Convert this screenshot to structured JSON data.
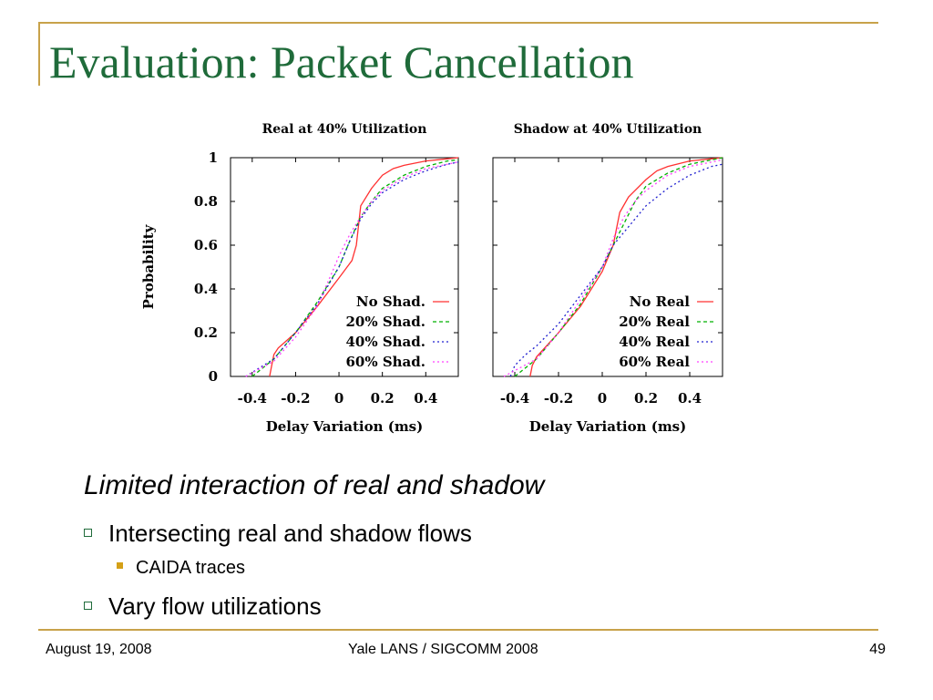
{
  "slide": {
    "title": "Evaluation: Packet Cancellation",
    "subtitle": "Limited interaction of real and shadow",
    "bullets": [
      "Intersecting real and shadow flows",
      "CAIDA traces",
      "Vary flow utilizations"
    ],
    "footer": {
      "left": "August 19, 2008",
      "center": "Yale LANS / SIGCOMM 2008",
      "right": "49"
    }
  },
  "chart_data": [
    {
      "type": "line",
      "title": "Real at 40% Utilization",
      "xlabel": "Delay Variation (ms)",
      "ylabel": "Probability",
      "xlim": [
        -0.5,
        0.55
      ],
      "ylim": [
        0,
        1
      ],
      "xticks": [
        "-0.4",
        "-0.2",
        "0",
        "0.2",
        "0.4"
      ],
      "xtick_values": [
        -0.4,
        -0.2,
        0,
        0.2,
        0.4
      ],
      "yticks": [
        "0",
        "0.2",
        "0.4",
        "0.6",
        "0.8",
        "1"
      ],
      "ytick_values": [
        0,
        0.2,
        0.4,
        0.6,
        0.8,
        1
      ],
      "legend_position": "bottom-right",
      "series": [
        {
          "name": "No Shad.",
          "color": "#ff3030",
          "dash": "solid",
          "x": [
            -0.32,
            -0.31,
            -0.3,
            -0.28,
            -0.2,
            -0.1,
            0,
            0.06,
            0.08,
            0.1,
            0.15,
            0.2,
            0.25,
            0.3,
            0.4,
            0.5,
            0.55
          ],
          "y": [
            0,
            0.05,
            0.1,
            0.13,
            0.2,
            0.32,
            0.45,
            0.53,
            0.6,
            0.78,
            0.86,
            0.92,
            0.95,
            0.965,
            0.985,
            0.995,
            1
          ]
        },
        {
          "name": "20% Shad.",
          "color": "#00b000",
          "dash": "4,3",
          "x": [
            -0.4,
            -0.3,
            -0.2,
            -0.1,
            0,
            0.05,
            0.1,
            0.15,
            0.2,
            0.3,
            0.4,
            0.5,
            0.55
          ],
          "y": [
            0,
            0.08,
            0.2,
            0.34,
            0.5,
            0.62,
            0.73,
            0.8,
            0.86,
            0.92,
            0.96,
            0.985,
            0.99
          ]
        },
        {
          "name": "40% Shad.",
          "color": "#2020d0",
          "dash": "2,3",
          "x": [
            -0.43,
            -0.3,
            -0.2,
            -0.1,
            0,
            0.05,
            0.1,
            0.15,
            0.2,
            0.3,
            0.4,
            0.5,
            0.55
          ],
          "y": [
            0,
            0.08,
            0.2,
            0.33,
            0.5,
            0.62,
            0.72,
            0.79,
            0.84,
            0.9,
            0.94,
            0.97,
            0.98
          ]
        },
        {
          "name": "60% Shad.",
          "color": "#ff40ff",
          "dash": "2,3",
          "x": [
            -0.43,
            -0.3,
            -0.2,
            -0.1,
            -0.03,
            0,
            0.05,
            0.1,
            0.15,
            0.2,
            0.3,
            0.4,
            0.5,
            0.55
          ],
          "y": [
            0,
            0.07,
            0.18,
            0.32,
            0.48,
            0.55,
            0.65,
            0.73,
            0.8,
            0.85,
            0.91,
            0.95,
            0.97,
            0.98
          ]
        }
      ]
    },
    {
      "type": "line",
      "title": "Shadow at 40% Utilization",
      "xlabel": "Delay Variation (ms)",
      "ylabel": "",
      "xlim": [
        -0.5,
        0.55
      ],
      "ylim": [
        0,
        1
      ],
      "xticks": [
        "-0.4",
        "-0.2",
        "0",
        "0.2",
        "0.4"
      ],
      "xtick_values": [
        -0.4,
        -0.2,
        0,
        0.2,
        0.4
      ],
      "yticks": [],
      "ytick_values": [
        0,
        0.2,
        0.4,
        0.6,
        0.8,
        1
      ],
      "legend_position": "bottom-right",
      "series": [
        {
          "name": "No Real",
          "color": "#ff3030",
          "dash": "solid",
          "x": [
            -0.33,
            -0.32,
            -0.3,
            -0.2,
            -0.1,
            0,
            0.05,
            0.08,
            0.12,
            0.2,
            0.25,
            0.3,
            0.4,
            0.5,
            0.55
          ],
          "y": [
            0,
            0.05,
            0.09,
            0.2,
            0.32,
            0.48,
            0.6,
            0.75,
            0.82,
            0.9,
            0.94,
            0.96,
            0.985,
            0.995,
            1
          ]
        },
        {
          "name": "20% Real",
          "color": "#00b000",
          "dash": "4,3",
          "x": [
            -0.4,
            -0.3,
            -0.2,
            -0.1,
            0,
            0.05,
            0.1,
            0.15,
            0.2,
            0.3,
            0.4,
            0.5,
            0.55
          ],
          "y": [
            0,
            0.08,
            0.2,
            0.33,
            0.5,
            0.6,
            0.7,
            0.8,
            0.87,
            0.93,
            0.97,
            0.99,
            1
          ]
        },
        {
          "name": "40% Real",
          "color": "#2020d0",
          "dash": "2,3",
          "x": [
            -0.42,
            -0.4,
            -0.35,
            -0.3,
            -0.2,
            -0.1,
            0,
            0.05,
            0.1,
            0.15,
            0.2,
            0.3,
            0.4,
            0.5,
            0.55
          ],
          "y": [
            0,
            0.05,
            0.1,
            0.14,
            0.24,
            0.37,
            0.5,
            0.6,
            0.66,
            0.72,
            0.78,
            0.86,
            0.92,
            0.96,
            0.97
          ]
        },
        {
          "name": "60% Real",
          "color": "#ff40ff",
          "dash": "2,3",
          "x": [
            -0.45,
            -0.3,
            -0.2,
            -0.1,
            0,
            0.05,
            0.1,
            0.15,
            0.2,
            0.3,
            0.4,
            0.5,
            0.55
          ],
          "y": [
            0,
            0.08,
            0.2,
            0.35,
            0.5,
            0.63,
            0.73,
            0.8,
            0.85,
            0.92,
            0.96,
            0.98,
            0.99
          ]
        }
      ]
    }
  ]
}
